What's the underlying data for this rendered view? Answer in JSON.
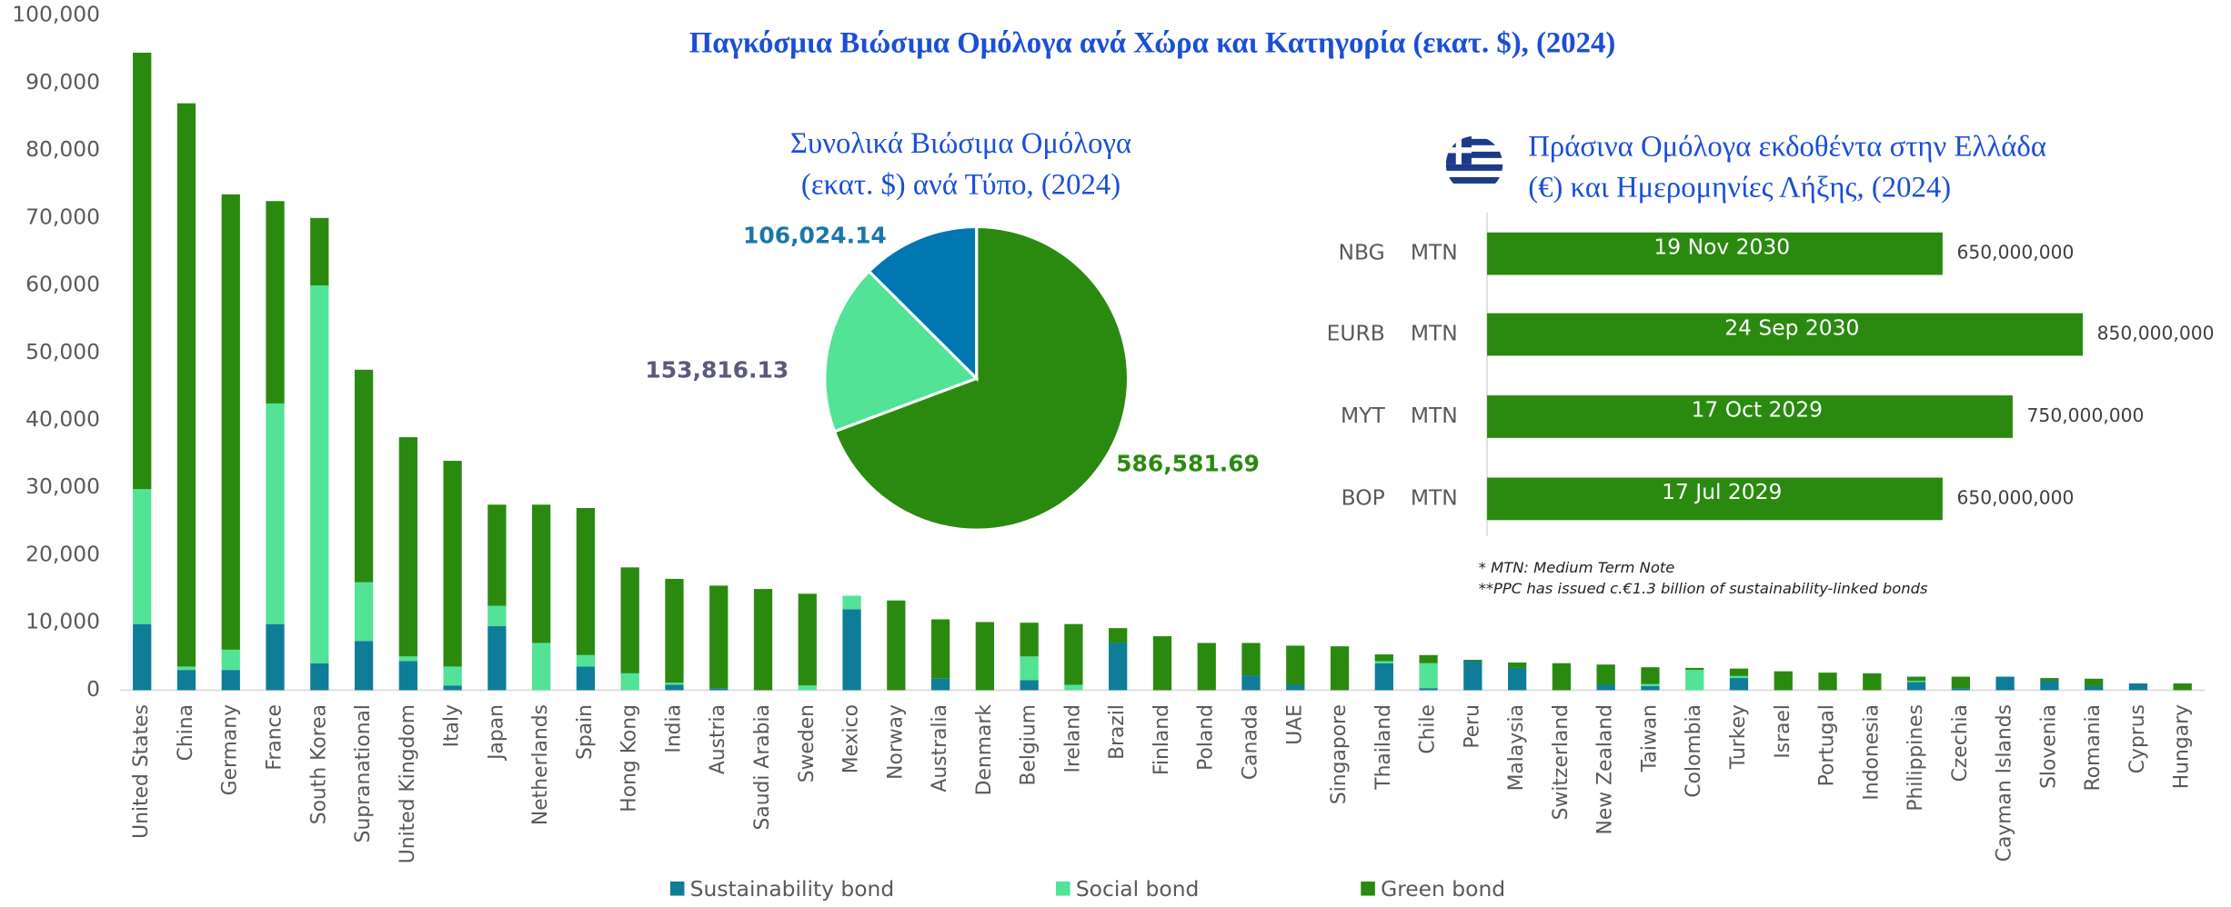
{
  "chart_data": [
    {
      "type": "bar",
      "stacked": true,
      "title": "Παγκόσμια Βιώσιμα Ομόλογα ανά Χώρα και Κατηγορία (εκατ. $), (2024)",
      "categories": [
        "United States",
        "China",
        "Germany",
        "France",
        "South Korea",
        "Supranational",
        "United Kingdom",
        "Italy",
        "Japan",
        "Netherlands",
        "Spain",
        "Hong Kong",
        "India",
        "Austria",
        "Saudi Arabia",
        "Sweden",
        "Mexico",
        "Norway",
        "Australia",
        "Denmark",
        "Belgium",
        "Ireland",
        "Brazil",
        "Finland",
        "Poland",
        "Canada",
        "UAE",
        "Singapore",
        "Thailand",
        "Chile",
        "Peru",
        "Malaysia",
        "Switzerland",
        "New Zealand",
        "Taiwan",
        "Colombia",
        "Turkey",
        "Israel",
        "Portugal",
        "Indonesia",
        "Philippines",
        "Czechia",
        "Cayman Islands",
        "Slovenia",
        "Romania",
        "Cyprus",
        "Hungary"
      ],
      "series": [
        {
          "name": "Sustainability bond",
          "color": "#0f7d98",
          "values": [
            9800,
            3000,
            3000,
            9800,
            4000,
            7300,
            4300,
            700,
            9500,
            0,
            3500,
            0,
            800,
            300,
            0,
            0,
            12000,
            0,
            1700,
            0,
            1500,
            0,
            7000,
            0,
            0,
            2200,
            800,
            0,
            4000,
            300,
            4300,
            3300,
            0,
            800,
            600,
            0,
            1800,
            0,
            0,
            0,
            1200,
            300,
            2000,
            1400,
            600,
            1000,
            0
          ]
        },
        {
          "name": "Social bond",
          "color": "#52e396",
          "values": [
            20000,
            500,
            3000,
            32700,
            56000,
            8700,
            700,
            2800,
            3000,
            7000,
            1700,
            2500,
            300,
            0,
            0,
            700,
            2000,
            0,
            0,
            0,
            3500,
            800,
            0,
            0,
            0,
            0,
            0,
            0,
            300,
            3700,
            0,
            0,
            0,
            0,
            300,
            3000,
            300,
            0,
            0,
            0,
            200,
            0,
            0,
            0,
            0,
            0,
            0
          ]
        },
        {
          "name": "Green bond",
          "color": "#2a8a10",
          "values": [
            64700,
            83500,
            67500,
            30000,
            10000,
            31500,
            32500,
            30500,
            15000,
            20500,
            21800,
            15700,
            15400,
            15200,
            15000,
            13600,
            0,
            13300,
            8800,
            10100,
            5000,
            9000,
            2200,
            8000,
            7000,
            4800,
            5800,
            6500,
            1000,
            1200,
            200,
            800,
            4000,
            3000,
            2500,
            300,
            1100,
            2800,
            2600,
            2500,
            600,
            1700,
            0,
            400,
            1100,
            0,
            1000
          ]
        }
      ],
      "ylim": [
        0,
        100000
      ],
      "yticks": [
        0,
        {
          "value": 10000,
          "label": "10,000"
        },
        {
          "value": 20000,
          "label": "20,000"
        },
        {
          "value": 30000,
          "label": "30,000"
        },
        {
          "value": 40000,
          "label": "40,000"
        },
        {
          "value": 50000,
          "label": "50,000"
        },
        {
          "value": 60000,
          "label": "60,000"
        },
        {
          "value": 70000,
          "label": "70,000"
        },
        {
          "value": 80000,
          "label": "80,000"
        },
        {
          "value": 90000,
          "label": "90,000"
        },
        {
          "value": 100000,
          "label": "100,000"
        }
      ],
      "legend": "bottom"
    },
    {
      "type": "pie",
      "title": [
        "Συνολικά Βιώσιμα Ομόλογα",
        "(εκατ. $) ανά Τύπο, (2024)"
      ],
      "values": [
        586581.69,
        153816.13,
        106024.14
      ],
      "value_labels": [
        "586,581.69",
        "153,816.13",
        "106,024.14"
      ],
      "colors": [
        "#2a8a10",
        "#52e396",
        "#0077b0"
      ]
    },
    {
      "type": "hbar",
      "title": [
        "Πράσινα Ομόλογα εκδοθέντα στην Ελλάδα",
        "(€) και Ημερομηνίες Λήξης, (2024)"
      ],
      "categories": [
        "NBG",
        "EURB",
        "MYT",
        "BOP"
      ],
      "types": [
        "MTN",
        "MTN",
        "MTN",
        "MTN"
      ],
      "dates": [
        "19 Nov 2030",
        "24 Sep 2030",
        "17 Oct 2029",
        "17 Jul 2029"
      ],
      "values": [
        650000000,
        850000000,
        750000000,
        650000000
      ],
      "value_labels": [
        "650,000,000",
        "850,000,000",
        "750,000,000",
        "650,000,000"
      ],
      "color": "#2a8a10",
      "xlim": [
        0,
        850000000
      ],
      "notes": [
        "* MTN: Medium Term Note",
        "**PPC has issued c.€1.3 billion of sustainability-linked bonds"
      ]
    }
  ]
}
